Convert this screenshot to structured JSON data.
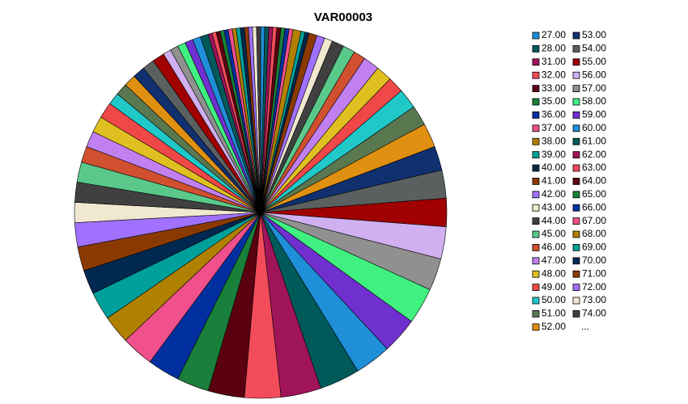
{
  "chart_data": {
    "type": "pie",
    "title": "VAR00003",
    "categories": [
      "27.00",
      "28.00",
      "31.00",
      "32.00",
      "33.00",
      "35.00",
      "36.00",
      "37.00",
      "38.00",
      "39.00",
      "40.00",
      "41.00",
      "42.00",
      "43.00",
      "44.00",
      "45.00",
      "46.00",
      "47.00",
      "48.00",
      "49.00",
      "50.00",
      "51.00",
      "52.00",
      "53.00",
      "54.00",
      "55.00",
      "56.00",
      "57.00",
      "58.00",
      "59.00",
      "60.00",
      "61.00",
      "62.00",
      "63.00",
      "64.00",
      "65.00",
      "66.00",
      "67.00",
      "68.00",
      "69.00",
      "70.00",
      "71.00",
      "72.00",
      "73.00",
      "74.00",
      null,
      null,
      null,
      null,
      null,
      null,
      null,
      null,
      null,
      null,
      null,
      null,
      null,
      null,
      null,
      null,
      null,
      null,
      null,
      null,
      null,
      null,
      null,
      null,
      null,
      null,
      null,
      null,
      null,
      null
    ],
    "values": [
      1,
      1,
      1,
      1,
      1,
      1,
      1,
      1,
      2,
      1,
      1,
      2,
      2,
      2,
      3,
      3,
      3,
      4,
      4,
      4,
      5,
      5,
      6,
      6,
      7,
      7,
      8,
      8,
      9,
      9,
      9,
      10,
      10,
      9,
      9,
      8,
      8,
      8,
      7,
      7,
      6,
      6,
      6,
      5,
      5,
      5,
      4,
      4,
      4,
      4,
      3,
      3,
      3,
      3,
      3,
      3,
      2,
      2,
      2,
      2,
      2,
      2,
      1,
      1,
      1,
      1,
      1,
      1,
      1,
      1,
      1,
      1,
      1,
      1,
      1
    ],
    "colors": [
      "#1f8fd9",
      "#005a5a",
      "#a0145a",
      "#f24c5a",
      "#5a0010",
      "#1a7f3a",
      "#0030a0",
      "#f0508c",
      "#b08000",
      "#00a09a",
      "#002850",
      "#8a3a00",
      "#a070ff",
      "#f0e8d0",
      "#404040",
      "#5ac88a",
      "#d05030",
      "#c080f0",
      "#e0c020",
      "#f04848",
      "#20c8c8",
      "#5a7850",
      "#e09010",
      "#103070",
      "#5a6060",
      "#a00000",
      "#d0b0f0",
      "#909090",
      "#40f080",
      "#7030d0"
    ],
    "legend_more": "..."
  }
}
